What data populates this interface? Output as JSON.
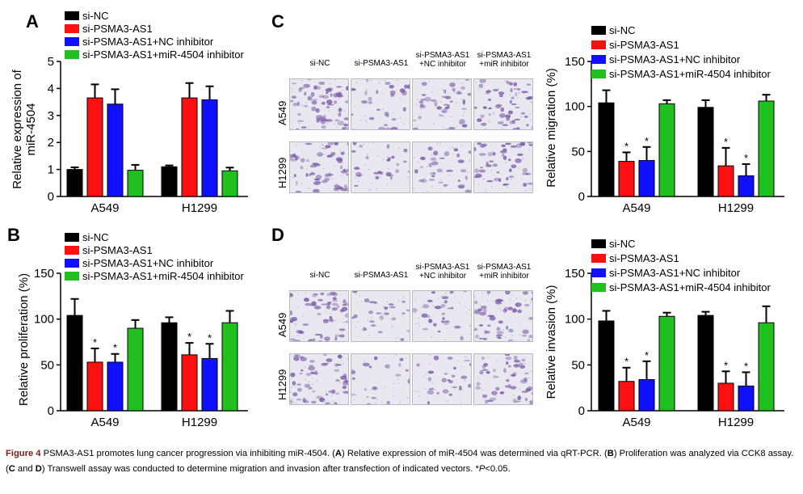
{
  "panels": {
    "A": "A",
    "B": "B",
    "C": "C",
    "D": "D"
  },
  "colors": {
    "si-NC": "#000000",
    "si-PSMA3-AS1": "#ff1010",
    "si-PSMA3-AS1+NC inhibitor": "#1010ff",
    "si-PSMA3-AS1+miR-4504 inhibitor": "#20c020",
    "stain_light": "#e9e7ef",
    "stain_dark": "#7a5aa8"
  },
  "legend": [
    "si-NC",
    "si-PSMA3-AS1",
    "si-PSMA3-AS1+NC inhibitor",
    "si-PSMA3-AS1+miR-4504 inhibitor"
  ],
  "chart_data": [
    {
      "panel": "A",
      "type": "bar",
      "categories": [
        "A549",
        "H1299"
      ],
      "ylabel": "Relative expression of miR-4504",
      "ylim": [
        0,
        5
      ],
      "yticks": [
        "0",
        "1",
        "2",
        "3",
        "4",
        "5"
      ],
      "series": [
        {
          "name": "si-NC",
          "values": [
            1.0,
            1.1
          ],
          "errors": [
            0.08,
            0.05
          ]
        },
        {
          "name": "si-PSMA3-AS1",
          "values": [
            3.65,
            3.65
          ],
          "errors": [
            0.5,
            0.55
          ]
        },
        {
          "name": "si-PSMA3-AS1+NC inhibitor",
          "values": [
            3.42,
            3.58
          ],
          "errors": [
            0.55,
            0.5
          ]
        },
        {
          "name": "si-PSMA3-AS1+miR-4504 inhibitor",
          "values": [
            0.97,
            0.95
          ],
          "errors": [
            0.2,
            0.12
          ]
        }
      ],
      "significance": [],
      "legend_position": "top-right"
    },
    {
      "panel": "B",
      "type": "bar",
      "categories": [
        "A549",
        "H1299"
      ],
      "ylabel": "Relative proliferation (%)",
      "ylim": [
        0,
        150
      ],
      "yticks": [
        "0",
        "50",
        "100",
        "150"
      ],
      "series": [
        {
          "name": "si-NC",
          "values": [
            104,
            96
          ],
          "errors": [
            18,
            6
          ]
        },
        {
          "name": "si-PSMA3-AS1",
          "values": [
            53,
            61
          ],
          "errors": [
            15,
            13
          ]
        },
        {
          "name": "si-PSMA3-AS1+NC inhibitor",
          "values": [
            53,
            57
          ],
          "errors": [
            9,
            16
          ]
        },
        {
          "name": "si-PSMA3-AS1+miR-4504 inhibitor",
          "values": [
            90,
            96
          ],
          "errors": [
            9,
            13
          ]
        }
      ],
      "significance": [
        "*",
        "*"
      ],
      "legend_position": "top-right"
    },
    {
      "panel": "C",
      "type": "bar",
      "categories": [
        "A549",
        "H1299"
      ],
      "ylabel": "Relative migration (%)",
      "ylim": [
        0,
        150
      ],
      "yticks": [
        "0",
        "50",
        "100",
        "150"
      ],
      "series": [
        {
          "name": "si-NC",
          "values": [
            104,
            99
          ],
          "errors": [
            14,
            8
          ]
        },
        {
          "name": "si-PSMA3-AS1",
          "values": [
            39,
            34
          ],
          "errors": [
            10,
            20
          ]
        },
        {
          "name": "si-PSMA3-AS1+NC inhibitor",
          "values": [
            40,
            23
          ],
          "errors": [
            15,
            13
          ]
        },
        {
          "name": "si-PSMA3-AS1+miR-4504 inhibitor",
          "values": [
            103,
            106
          ],
          "errors": [
            4,
            7
          ]
        }
      ],
      "significance": [
        "*",
        "*"
      ],
      "legend_position": "top-right"
    },
    {
      "panel": "D",
      "type": "bar",
      "categories": [
        "A549",
        "H1299"
      ],
      "ylabel": "Relative invasion (%)",
      "ylim": [
        0,
        150
      ],
      "yticks": [
        "0",
        "50",
        "100",
        "150"
      ],
      "series": [
        {
          "name": "si-NC",
          "values": [
            98,
            104
          ],
          "errors": [
            11,
            4
          ]
        },
        {
          "name": "si-PSMA3-AS1",
          "values": [
            32,
            30
          ],
          "errors": [
            15,
            13
          ]
        },
        {
          "name": "si-PSMA3-AS1+NC inhibitor",
          "values": [
            34,
            27
          ],
          "errors": [
            20,
            15
          ]
        },
        {
          "name": "si-PSMA3-AS1+miR-4504 inhibitor",
          "values": [
            103,
            96
          ],
          "errors": [
            4,
            18
          ]
        }
      ],
      "significance": [
        "*",
        "*"
      ],
      "legend_position": "top-right"
    }
  ],
  "micrographs": {
    "C": {
      "columns": [
        "si-NC",
        "si-PSMA3-AS1",
        "si-PSMA3-AS1\n+NC inhibitor",
        "si-PSMA3-AS1\n+miR inhibitor"
      ],
      "rows": [
        "A549",
        "H1299"
      ],
      "density": [
        [
          0.9,
          0.35,
          0.55,
          0.75
        ],
        [
          0.8,
          0.3,
          0.4,
          0.75
        ]
      ]
    },
    "D": {
      "columns": [
        "si-NC",
        "si-PSMA3-AS1",
        "si-PSMA3-AS1\n+NC inhibitor",
        "si-PSMA3-AS1\n+miR inhibitor"
      ],
      "rows": [
        "A549",
        "H1299"
      ],
      "density": [
        [
          0.85,
          0.3,
          0.35,
          0.75
        ],
        [
          0.8,
          0.2,
          0.3,
          0.7
        ]
      ]
    }
  },
  "caption": {
    "figure": "Figure 4",
    "title": " PSMA3-AS1 promotes lung cancer progression via inhibiting miR-4504. (",
    "A": "A",
    "a_text": ") Relative expression of miR-4504 was determined via qRT-PCR. (",
    "B": "B",
    "b_text": ") Proliferation was analyzed via CCK8 assay. (",
    "C": "C",
    "and": " and ",
    "D": "D",
    "d_text": ") Transwell assay was conducted to determine migration and invasion after transfection of indicated vectors. *",
    "p": "P",
    "p_text": "<0.05."
  }
}
